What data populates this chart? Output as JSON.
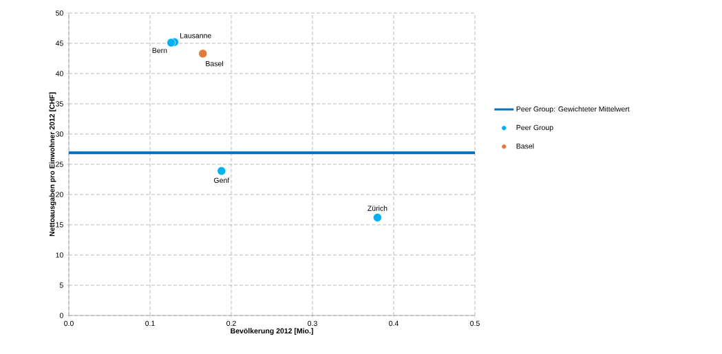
{
  "chart_data": {
    "type": "scatter",
    "xlabel": "Bevölkerung 2012 [Mio.]",
    "ylabel": "Nettoausgaben pro Einwohner 2012 [CHF]",
    "xlim": [
      0,
      0.5
    ],
    "ylim": [
      0,
      50
    ],
    "xticks": [
      {
        "value": 0,
        "label": "0.0"
      },
      {
        "value": 0.1,
        "label": "0.1"
      },
      {
        "value": 0.2,
        "label": "0.2"
      },
      {
        "value": 0.3,
        "label": "0.3"
      },
      {
        "value": 0.4,
        "label": "0.4"
      },
      {
        "value": 0.5,
        "label": "0.5"
      }
    ],
    "yticks": [
      0,
      5,
      10,
      15,
      20,
      25,
      30,
      35,
      40,
      45,
      50
    ],
    "grid": true,
    "legend": "right",
    "series": [
      {
        "name": "Peer Group: Gewichteter Mittelwert",
        "type": "line",
        "color": "#0070c0",
        "x": [
          0,
          0.5
        ],
        "values": [
          26.9,
          26.9
        ]
      },
      {
        "name": "Peer Group",
        "color": "#00b0f0",
        "marker": "circle",
        "x": [
          0.13,
          0.126,
          0.188,
          0.38
        ],
        "values": [
          45.2,
          45.1,
          23.9,
          16.2
        ]
      },
      {
        "name": "Basel",
        "color": "#e07b39",
        "marker": "circle",
        "x": [
          0.165
        ],
        "values": [
          43.3
        ]
      }
    ],
    "annotations": [
      {
        "text": "Lausanne",
        "x": 0.13,
        "y": 45.2
      },
      {
        "text": "Bern",
        "x": 0.126,
        "y": 45.1
      },
      {
        "text": "Basel",
        "x": 0.165,
        "y": 43.3
      },
      {
        "text": "Genf",
        "x": 0.188,
        "y": 23.9
      },
      {
        "text": "Zürich",
        "x": 0.38,
        "y": 16.2
      }
    ]
  }
}
